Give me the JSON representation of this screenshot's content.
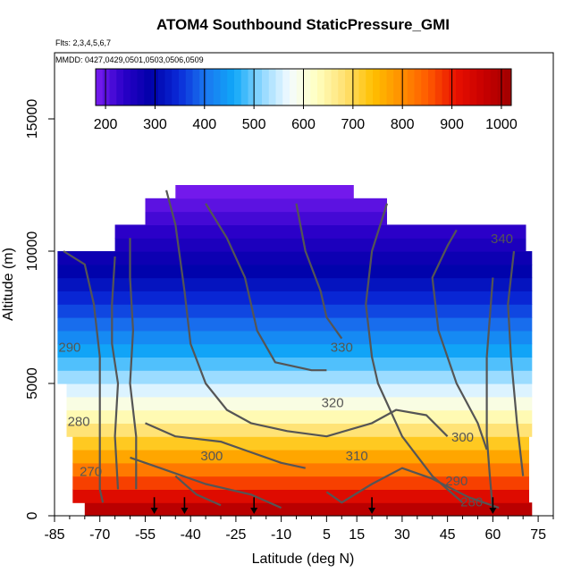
{
  "chart_data": {
    "type": "heatmap",
    "title": "ATOM4 Southbound StaticPressure_GMI",
    "subtitle_flights": "Flts: 2,3,4,5,6,7",
    "subtitle_dates": "MMDD: 0427,0429,0501,0503,0506,0509",
    "xlabel": "Latitude (deg N)",
    "ylabel": "Altitude (m)",
    "xlim": [
      -85,
      80
    ],
    "ylim": [
      0,
      17500
    ],
    "x_ticks": [
      -85,
      -70,
      -55,
      -40,
      -25,
      -10,
      5,
      15,
      30,
      45,
      60,
      75
    ],
    "y_ticks": [
      0,
      5000,
      10000,
      15000
    ],
    "colorbar": {
      "min": 180,
      "max": 1020,
      "ticks": [
        200,
        300,
        400,
        500,
        600,
        700,
        800,
        900,
        1000
      ],
      "colors": [
        "#7a1cf0",
        "#2a00c8",
        "#0000a8",
        "#0a2ad8",
        "#1a78f0",
        "#10a8f8",
        "#90d8ff",
        "#f4fbff",
        "#ffffc0",
        "#ffe070",
        "#ffc000",
        "#ff9000",
        "#ff5a00",
        "#e81000",
        "#c80000",
        "#a00000"
      ]
    },
    "contour_labels": [
      {
        "text": "340",
        "lat": 63,
        "alt": 10300
      },
      {
        "text": "330",
        "lat": 10,
        "alt": 6200
      },
      {
        "text": "320",
        "lat": 7,
        "alt": 4100
      },
      {
        "text": "310",
        "lat": 15,
        "alt": 2100
      },
      {
        "text": "300",
        "lat": -33,
        "alt": 2100
      },
      {
        "text": "300",
        "lat": 50,
        "alt": 2800
      },
      {
        "text": "290",
        "lat": -80,
        "alt": 6200
      },
      {
        "text": "280",
        "lat": -77,
        "alt": 3400
      },
      {
        "text": "290",
        "lat": 48,
        "alt": 1150
      },
      {
        "text": "280",
        "lat": 53,
        "alt": 350
      },
      {
        "text": "270",
        "lat": -73,
        "alt": 1500
      }
    ],
    "profile_markers_lat": [
      -52,
      -42,
      -19,
      20,
      60
    ]
  }
}
